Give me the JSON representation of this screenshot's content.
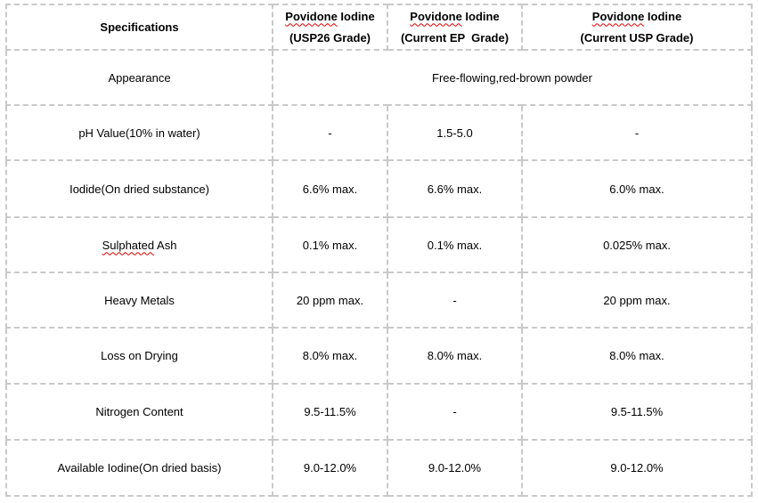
{
  "colors": {
    "border": "#c9c9c9",
    "text": "#000000",
    "spellcheck_underline": "#e00000",
    "background": "#ffffff"
  },
  "table": {
    "header": {
      "spec_label": "Specifications",
      "products": [
        {
          "brand_word": "Povidone",
          "brand_rest": " Iodine",
          "grade": "(USP26 Grade)"
        },
        {
          "brand_word": "Povidone",
          "brand_rest": " Iodine",
          "grade": "(Current EP  Grade)"
        },
        {
          "brand_word": "Povidone",
          "brand_rest": " Iodine",
          "grade": "(Current USP Grade)"
        }
      ]
    },
    "appearance_row": {
      "label": "Appearance",
      "merged_value": "Free-flowing,red-brown powder"
    },
    "rows": [
      {
        "label": "pH Value(10% in water)",
        "values": [
          "-",
          "1.5-5.0",
          "-"
        ]
      },
      {
        "label": "Iodide(On dried substance)",
        "values": [
          "6.6% max.",
          "6.6% max.",
          "6.0% max."
        ]
      },
      {
        "label_misspelled": "Sulphated",
        "label_rest": " Ash",
        "values": [
          "0.1% max.",
          "0.1% max.",
          "0.025% max."
        ]
      },
      {
        "label": "Heavy Metals",
        "values": [
          "20 ppm max.",
          "-",
          "20 ppm max."
        ]
      },
      {
        "label": "Loss on Drying",
        "values": [
          "8.0% max.",
          "8.0% max.",
          "8.0% max."
        ]
      },
      {
        "label": "Nitrogen Content",
        "values": [
          "9.5-11.5%",
          "-",
          "9.5-11.5%"
        ]
      },
      {
        "label": "Available Iodine(On dried basis)",
        "values": [
          "9.0-12.0%",
          "9.0-12.0%",
          "9.0-12.0%"
        ]
      }
    ]
  }
}
